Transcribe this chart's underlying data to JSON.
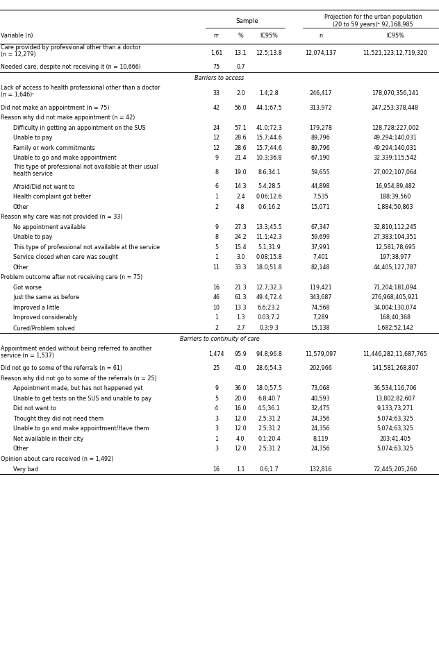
{
  "rows": [
    {
      "label": "Care provided by professional other than a doctor\n(n = 12,279)",
      "indent": 0,
      "n": "1,61",
      "pct": "13.1",
      "ic95": "12.5;13.8",
      "proj_n": "12,074,137",
      "proj_ic95": "11,521,123;12,719,320",
      "separator": false,
      "section_header": false,
      "multiline": true
    },
    {
      "label": "Needed care, despite not receiving it (n = 10,666)",
      "indent": 0,
      "n": "75",
      "pct": "0.7",
      "ic95": "",
      "proj_n": "",
      "proj_ic95": "",
      "separator": false,
      "section_header": false,
      "multiline": false
    },
    {
      "label": "Barriers to access",
      "indent": 0,
      "n": "",
      "pct": "",
      "ic95": "",
      "proj_n": "",
      "proj_ic95": "",
      "separator": true,
      "section_header": true,
      "multiline": false
    },
    {
      "label": "Lack of access to health professional other than a doctor\n(n = 1,646)ᶜ",
      "indent": 0,
      "n": "33",
      "pct": "2.0",
      "ic95": "1.4;2.8",
      "proj_n": "246,417",
      "proj_ic95": "178,070;356,141",
      "separator": false,
      "section_header": false,
      "multiline": true
    },
    {
      "label": "Did not make an appointment (n = 75)",
      "indent": 0,
      "n": "42",
      "pct": "56.0",
      "ic95": "44.1;67.5",
      "proj_n": "313,972",
      "proj_ic95": "247,253;378,448",
      "separator": false,
      "section_header": false,
      "multiline": false
    },
    {
      "label": "Reason why did not make appointment (n = 42)",
      "indent": 0,
      "n": "",
      "pct": "",
      "ic95": "",
      "proj_n": "",
      "proj_ic95": "",
      "separator": false,
      "section_header": false,
      "multiline": false
    },
    {
      "label": "Difficulty in getting an appointment on the SUS",
      "indent": 1,
      "n": "24",
      "pct": "57.1",
      "ic95": "41.0;72.3",
      "proj_n": "179,278",
      "proj_ic95": "128,728;227,002",
      "separator": false,
      "section_header": false,
      "multiline": false
    },
    {
      "label": "Unable to pay",
      "indent": 1,
      "n": "12",
      "pct": "28.6",
      "ic95": "15.7;44.6",
      "proj_n": "89,796",
      "proj_ic95": "49,294;140,031",
      "separator": false,
      "section_header": false,
      "multiline": false
    },
    {
      "label": "Family or work commitments",
      "indent": 1,
      "n": "12",
      "pct": "28.6",
      "ic95": "15.7;44.6",
      "proj_n": "89,796",
      "proj_ic95": "49,294;140,031",
      "separator": false,
      "section_header": false,
      "multiline": false
    },
    {
      "label": "Unable to go and make appointment",
      "indent": 1,
      "n": "9",
      "pct": "21.4",
      "ic95": "10.3;36.8",
      "proj_n": "67,190",
      "proj_ic95": "32,339;115,542",
      "separator": false,
      "section_header": false,
      "multiline": false
    },
    {
      "label": "This type of professional not available at their usual\nhealth service",
      "indent": 1,
      "n": "8",
      "pct": "19.0",
      "ic95": "8.6;34.1",
      "proj_n": "59,655",
      "proj_ic95": "27,002;107,064",
      "separator": false,
      "section_header": false,
      "multiline": true
    },
    {
      "label": "Afraid/Did not want to",
      "indent": 1,
      "n": "6",
      "pct": "14.3",
      "ic95": "5.4;28.5",
      "proj_n": "44,898",
      "proj_ic95": "16,954;89,482",
      "separator": false,
      "section_header": false,
      "multiline": false
    },
    {
      "label": "Health complaint got better",
      "indent": 1,
      "n": "1",
      "pct": "2.4",
      "ic95": "0.06;12.6",
      "proj_n": "7,535",
      "proj_ic95": "188;39,560",
      "separator": false,
      "section_header": false,
      "multiline": false
    },
    {
      "label": "Other",
      "indent": 1,
      "n": "2",
      "pct": "4.8",
      "ic95": "0.6;16.2",
      "proj_n": "15,071",
      "proj_ic95": "1,884;50,863",
      "separator": false,
      "section_header": false,
      "multiline": false
    },
    {
      "label": "Reason why care was not provided (n = 33)",
      "indent": 0,
      "n": "",
      "pct": "",
      "ic95": "",
      "proj_n": "",
      "proj_ic95": "",
      "separator": false,
      "section_header": false,
      "multiline": false
    },
    {
      "label": "No appointment available",
      "indent": 1,
      "n": "9",
      "pct": "27.3",
      "ic95": "13.3;45.5",
      "proj_n": "67,347",
      "proj_ic95": "32,810;112,245",
      "separator": false,
      "section_header": false,
      "multiline": false
    },
    {
      "label": "Unable to pay",
      "indent": 1,
      "n": "8",
      "pct": "24.2",
      "ic95": "11.1;42.3",
      "proj_n": "59,699",
      "proj_ic95": "27,383;104,351",
      "separator": false,
      "section_header": false,
      "multiline": false
    },
    {
      "label": "This type of professional not available at the service",
      "indent": 1,
      "n": "5",
      "pct": "15.4",
      "ic95": "5.1;31.9",
      "proj_n": "37,991",
      "proj_ic95": "12,581;78,695",
      "separator": false,
      "section_header": false,
      "multiline": false
    },
    {
      "label": "Service closed when care was sought",
      "indent": 1,
      "n": "1",
      "pct": "3.0",
      "ic95": "0.08;15.8",
      "proj_n": "7,401",
      "proj_ic95": "197;38,977",
      "separator": false,
      "section_header": false,
      "multiline": false
    },
    {
      "label": "Other",
      "indent": 1,
      "n": "11",
      "pct": "33.3",
      "ic95": "18.0;51.8",
      "proj_n": "82,148",
      "proj_ic95": "44,405;127,787",
      "separator": false,
      "section_header": false,
      "multiline": false
    },
    {
      "label": "Problem outcome after not receiving care (n = 75)",
      "indent": 0,
      "n": "",
      "pct": "",
      "ic95": "",
      "proj_n": "",
      "proj_ic95": "",
      "separator": false,
      "section_header": false,
      "multiline": false
    },
    {
      "label": "Got worse",
      "indent": 1,
      "n": "16",
      "pct": "21.3",
      "ic95": "12.7;32.3",
      "proj_n": "119,421",
      "proj_ic95": "71,204;181,094",
      "separator": false,
      "section_header": false,
      "multiline": false
    },
    {
      "label": "Just the same as before",
      "indent": 1,
      "n": "46",
      "pct": "61.3",
      "ic95": "49.4;72.4",
      "proj_n": "343,687",
      "proj_ic95": "276,968;405,921",
      "separator": false,
      "section_header": false,
      "multiline": false
    },
    {
      "label": "Improved a little",
      "indent": 1,
      "n": "10",
      "pct": "13.3",
      "ic95": "6.6;23.2",
      "proj_n": "74,568",
      "proj_ic95": "34,004;130,074",
      "separator": false,
      "section_header": false,
      "multiline": false
    },
    {
      "label": "Improved considerably",
      "indent": 1,
      "n": "1",
      "pct": "1.3",
      "ic95": "0.03;7.2",
      "proj_n": "7,289",
      "proj_ic95": "168;40,368",
      "separator": false,
      "section_header": false,
      "multiline": false
    },
    {
      "label": "Cured/Problem solved",
      "indent": 1,
      "n": "2",
      "pct": "2.7",
      "ic95": "0.3;9.3",
      "proj_n": "15,138",
      "proj_ic95": "1,682;52,142",
      "separator": false,
      "section_header": false,
      "multiline": false
    },
    {
      "label": "Barriers to continuity of care",
      "indent": 0,
      "n": "",
      "pct": "",
      "ic95": "",
      "proj_n": "",
      "proj_ic95": "",
      "separator": true,
      "section_header": true,
      "multiline": false
    },
    {
      "label": "Appointment ended without being referred to another\nservice (n = 1,537)",
      "indent": 0,
      "n": "1,474",
      "pct": "95.9",
      "ic95": "94.8;96.8",
      "proj_n": "11,579,097",
      "proj_ic95": "11,446,282;11,687,765",
      "separator": false,
      "section_header": false,
      "multiline": true
    },
    {
      "label": "Did not go to some of the referrals (n = 61)",
      "indent": 0,
      "n": "25",
      "pct": "41.0",
      "ic95": "28.6;54.3",
      "proj_n": "202,966",
      "proj_ic95": "141,581;268,807",
      "separator": false,
      "section_header": false,
      "multiline": false
    },
    {
      "label": "Reason why did not go to some of the referrals (n = 25)",
      "indent": 0,
      "n": "",
      "pct": "",
      "ic95": "",
      "proj_n": "",
      "proj_ic95": "",
      "separator": false,
      "section_header": false,
      "multiline": false
    },
    {
      "label": "Appointment made, but has not happened yet",
      "indent": 1,
      "n": "9",
      "pct": "36.0",
      "ic95": "18.0;57.5",
      "proj_n": "73,068",
      "proj_ic95": "36,534;116,706",
      "separator": false,
      "section_header": false,
      "multiline": false
    },
    {
      "label": "Unable to get tests on the SUS and unable to pay",
      "indent": 1,
      "n": "5",
      "pct": "20.0",
      "ic95": "6.8;40.7",
      "proj_n": "40,593",
      "proj_ic95": "13,802;82,607",
      "separator": false,
      "section_header": false,
      "multiline": false
    },
    {
      "label": "Did not want to",
      "indent": 1,
      "n": "4",
      "pct": "16.0",
      "ic95": "4.5;36.1",
      "proj_n": "32,475",
      "proj_ic95": "9,133;73,271",
      "separator": false,
      "section_header": false,
      "multiline": false
    },
    {
      "label": "Thought they did not need them",
      "indent": 1,
      "n": "3",
      "pct": "12.0",
      "ic95": "2.5;31.2",
      "proj_n": "24,356",
      "proj_ic95": "5,074;63,325",
      "separator": false,
      "section_header": false,
      "multiline": false
    },
    {
      "label": "Unable to go and make appointment/Have them",
      "indent": 1,
      "n": "3",
      "pct": "12.0",
      "ic95": "2.5;31.2",
      "proj_n": "24,356",
      "proj_ic95": "5,074;63,325",
      "separator": false,
      "section_header": false,
      "multiline": false
    },
    {
      "label": "Not available in their city",
      "indent": 1,
      "n": "1",
      "pct": "4.0",
      "ic95": "0.1;20.4",
      "proj_n": "8,119",
      "proj_ic95": "203;41,405",
      "separator": false,
      "section_header": false,
      "multiline": false
    },
    {
      "label": "Other",
      "indent": 1,
      "n": "3",
      "pct": "12.0",
      "ic95": "2.5;31.2",
      "proj_n": "24,356",
      "proj_ic95": "5,074;63,325",
      "separator": false,
      "section_header": false,
      "multiline": false
    },
    {
      "label": "Opinion about care received (n = 1,492)",
      "indent": 0,
      "n": "",
      "pct": "",
      "ic95": "",
      "proj_n": "",
      "proj_ic95": "",
      "separator": false,
      "section_header": false,
      "multiline": false
    },
    {
      "label": "Very bad",
      "indent": 1,
      "n": "16",
      "pct": "1.1",
      "ic95": "0.6;1.7",
      "proj_n": "132,816",
      "proj_ic95": "72,445;205,260",
      "separator": false,
      "section_header": false,
      "multiline": false
    }
  ],
  "font_size": 5.8,
  "bg_color": "#ffffff"
}
